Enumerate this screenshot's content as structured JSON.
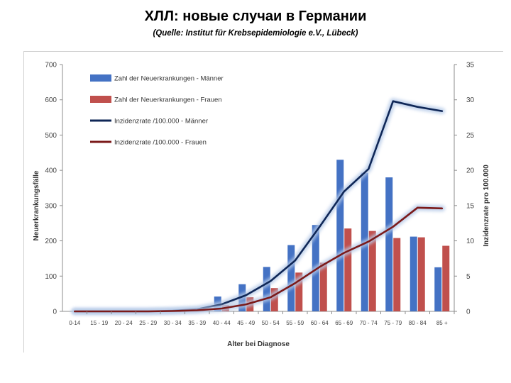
{
  "page": {
    "title": "ХЛЛ: новые случаи в Германии",
    "subtitle": "(Quelle: Institut für Krebsepidemiologie e.V., Lübeck)"
  },
  "colors": {
    "bar_men": "#4472c4",
    "bar_women": "#c0504d",
    "line_men": "#0f2757",
    "line_women": "#7b1a1a",
    "line_glow": "#b7cbe8"
  },
  "chart_data": {
    "type": "bar",
    "categories": [
      "0-14",
      "15 - 19",
      "20 - 24",
      "25 - 29",
      "30 - 34",
      "35 - 39",
      "40 - 44",
      "45 - 49",
      "50 - 54",
      "55 - 59",
      "60 - 64",
      "65 - 69",
      "70 - 74",
      "75 - 79",
      "80 - 84",
      "85 +"
    ],
    "series": [
      {
        "name": "Zahl der Neuerkrankungen - Männer",
        "kind": "bar",
        "axis": "left",
        "values": [
          0,
          0,
          0,
          1,
          2,
          5,
          42,
          77,
          126,
          188,
          245,
          430,
          393,
          380,
          212,
          125
        ]
      },
      {
        "name": "Zahl der Neuerkrankungen - Frauen",
        "kind": "bar",
        "axis": "left",
        "values": [
          0,
          0,
          0,
          1,
          1,
          3,
          18,
          40,
          66,
          110,
          138,
          235,
          228,
          208,
          210,
          186
        ]
      },
      {
        "name": "Inzidenzrate /100.000 - Männer",
        "kind": "line",
        "axis": "right",
        "values": [
          0,
          0,
          0,
          0,
          0.1,
          0.3,
          1,
          2.3,
          4.3,
          7.2,
          12,
          17,
          20.2,
          29.8,
          29,
          28.4
        ]
      },
      {
        "name": "Inzidenzrate /100.000 - Frauen",
        "kind": "line",
        "axis": "right",
        "values": [
          0,
          0,
          0,
          0,
          0.05,
          0.15,
          0.4,
          1,
          2,
          4,
          6.3,
          8.3,
          9.9,
          12,
          14.7,
          14.6
        ]
      }
    ],
    "xlabel": "Alter bei Diagnose",
    "ylabel": "Neuerkrankungsfälle",
    "y2label": "Inzidenzrate pro 100.000",
    "ylim": [
      0,
      700
    ],
    "y2lim": [
      0,
      35
    ],
    "yticks": [
      "0",
      "100",
      "200",
      "300",
      "400",
      "500",
      "600",
      "700"
    ],
    "y2ticks": [
      "0",
      "5",
      "10",
      "15",
      "20",
      "25",
      "30",
      "35"
    ],
    "grid": false,
    "legend_position": "top-left"
  }
}
